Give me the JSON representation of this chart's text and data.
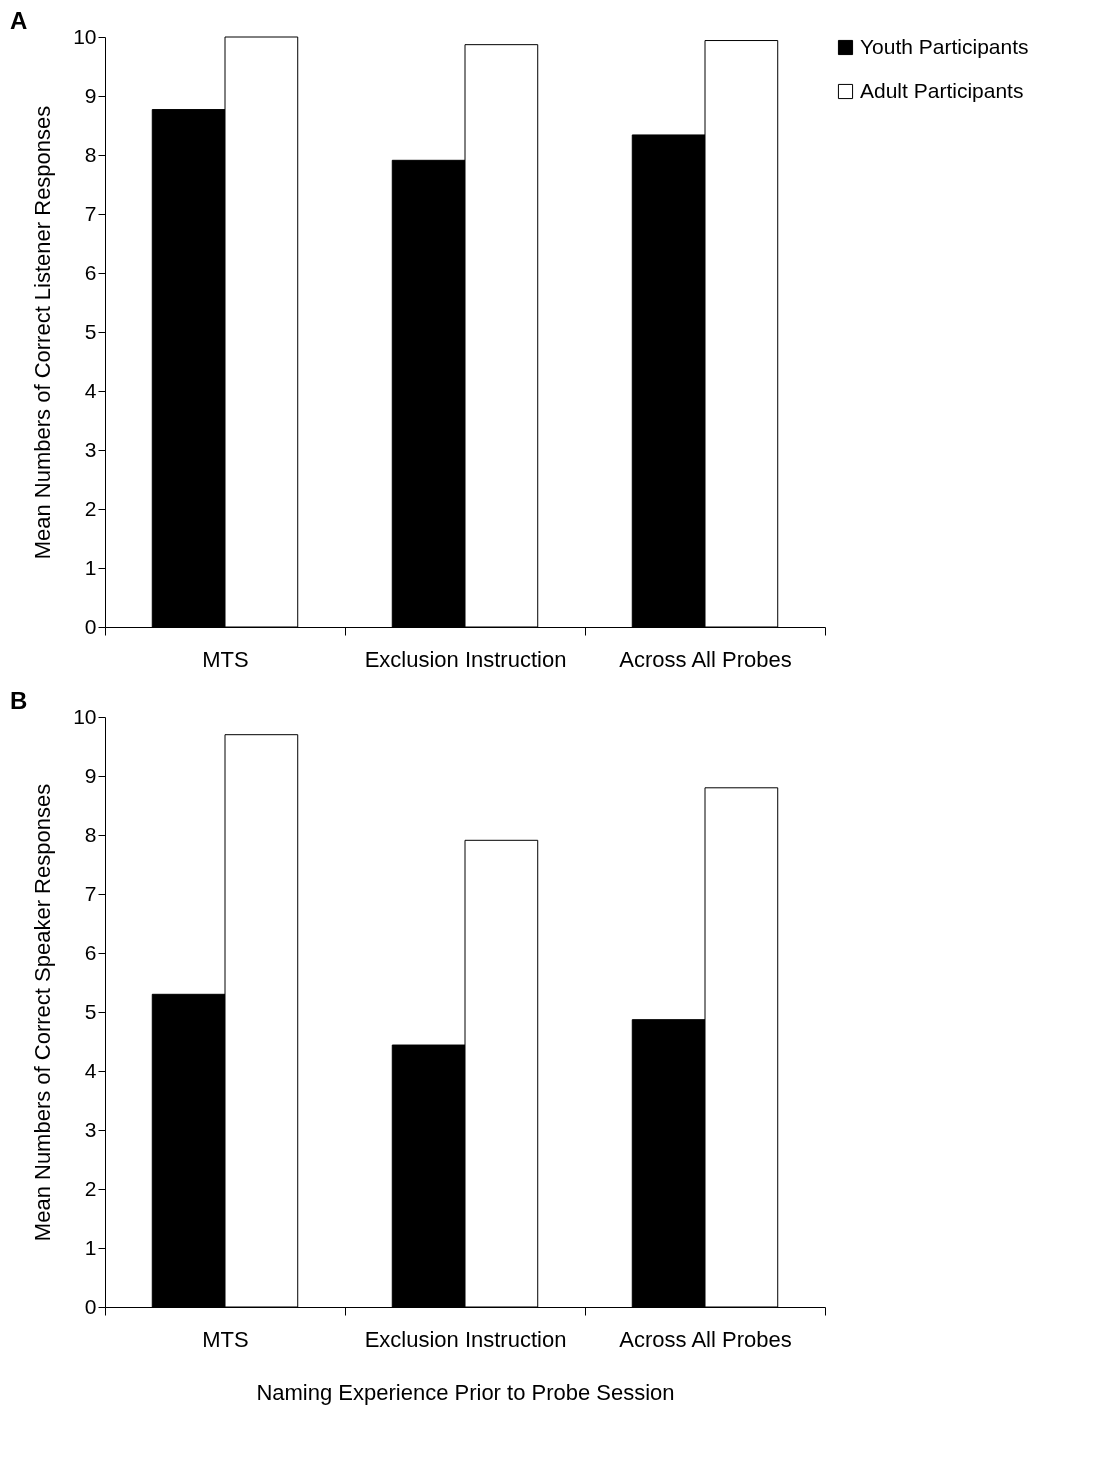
{
  "chart_data": [
    {
      "type": "bar",
      "title": "A",
      "ylabel": "Mean Numbers of Correct Listener Responses",
      "categories": [
        "MTS",
        "Exclusion Instruction",
        "Across All Probes"
      ],
      "series": [
        {
          "name": "Youth Participants",
          "color": "#000000",
          "values": [
            8.77,
            7.91,
            8.34
          ]
        },
        {
          "name": "Adult Participants",
          "color": "#ffffff",
          "values": [
            10.0,
            9.87,
            9.94
          ]
        }
      ],
      "ylim": [
        0,
        10
      ],
      "yticks": [
        0,
        1,
        2,
        3,
        4,
        5,
        6,
        7,
        8,
        9,
        10
      ],
      "grid": false,
      "legend": "top right"
    },
    {
      "type": "bar",
      "title": "B",
      "ylabel": "Mean Numbers of Correct Speaker Responses",
      "xlabel": "Naming Experience Prior to Probe Session",
      "categories": [
        "MTS",
        "Exclusion Instruction",
        "Across All Probes"
      ],
      "series": [
        {
          "color": "#000000",
          "values": [
            5.3,
            4.44,
            4.87
          ]
        },
        {
          "color": "#ffffff",
          "values": [
            9.7,
            7.91,
            8.8
          ]
        }
      ],
      "ylim": [
        0,
        10
      ],
      "yticks": [
        0,
        1,
        2,
        3,
        4,
        5,
        6,
        7,
        8,
        9,
        10
      ],
      "grid": false,
      "legend": false
    }
  ]
}
